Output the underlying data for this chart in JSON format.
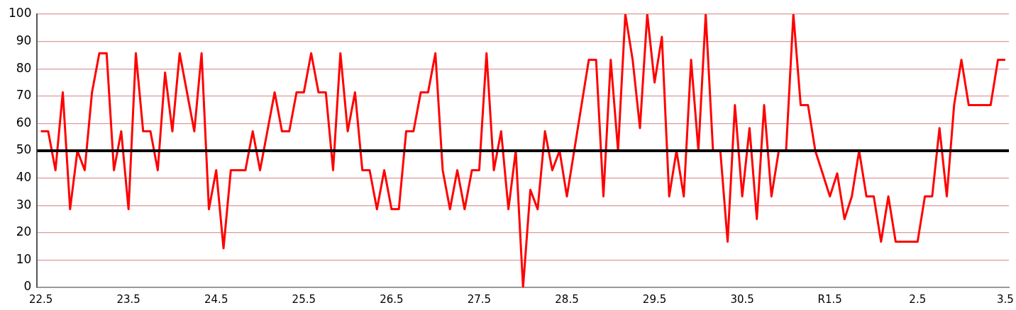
{
  "chart_data": {
    "type": "line",
    "categories": [
      "22.5",
      null,
      null,
      null,
      null,
      null,
      null,
      null,
      null,
      null,
      null,
      null,
      "23.5",
      null,
      null,
      null,
      null,
      null,
      null,
      null,
      null,
      null,
      null,
      null,
      "24.5",
      null,
      null,
      null,
      null,
      null,
      null,
      null,
      null,
      null,
      null,
      null,
      "25.5",
      null,
      null,
      null,
      null,
      null,
      null,
      null,
      null,
      null,
      null,
      null,
      "26.5",
      null,
      null,
      null,
      null,
      null,
      null,
      null,
      null,
      null,
      null,
      null,
      "27.5",
      null,
      null,
      null,
      null,
      null,
      null,
      null,
      null,
      null,
      null,
      null,
      "28.5",
      null,
      null,
      null,
      null,
      null,
      null,
      null,
      null,
      null,
      null,
      null,
      "29.5",
      null,
      null,
      null,
      null,
      null,
      null,
      null,
      null,
      null,
      null,
      null,
      "30.5",
      null,
      null,
      null,
      null,
      null,
      null,
      null,
      null,
      null,
      null,
      null,
      "R1.5",
      null,
      null,
      null,
      null,
      null,
      null,
      null,
      null,
      null,
      null,
      null,
      "2.5",
      null,
      null,
      null,
      null,
      null,
      null,
      null,
      null,
      null,
      null,
      null,
      "3.5"
    ],
    "series": [
      {
        "color": "#ff0000",
        "values": [
          57.1,
          57.1,
          42.9,
          71.4,
          28.6,
          50,
          42.9,
          71.4,
          85.7,
          85.7,
          42.9,
          57.1,
          28.6,
          85.7,
          57.1,
          57.1,
          42.9,
          78.6,
          57.1,
          85.7,
          71.4,
          57.1,
          85.7,
          28.6,
          42.9,
          14.3,
          42.9,
          42.9,
          42.9,
          57.1,
          42.9,
          57.1,
          71.4,
          57.1,
          57.1,
          71.4,
          71.4,
          85.7,
          71.4,
          71.4,
          42.9,
          85.7,
          57.1,
          71.4,
          42.9,
          42.9,
          28.6,
          42.9,
          28.6,
          28.6,
          57.1,
          57.1,
          71.4,
          71.4,
          85.7,
          42.9,
          28.6,
          42.9,
          28.6,
          42.9,
          42.9,
          85.7,
          42.9,
          57.1,
          28.6,
          50,
          0,
          35.7,
          28.6,
          57.1,
          42.9,
          50,
          33.3,
          50,
          66.7,
          83.3,
          83.3,
          33.3,
          83.3,
          50,
          100,
          83.3,
          58.3,
          100,
          75,
          91.7,
          33.3,
          50,
          33.3,
          83.3,
          50,
          100,
          50,
          50,
          16.7,
          66.7,
          33.3,
          58.3,
          25,
          66.7,
          33.3,
          50,
          50,
          100,
          66.7,
          66.7,
          50,
          41.7,
          33.3,
          41.7,
          25,
          33.3,
          50,
          33.3,
          33.3,
          16.7,
          33.3,
          16.7,
          16.7,
          16.7,
          16.7,
          33.3,
          33.3,
          58.3,
          33.3,
          66.7,
          83.3,
          66.7,
          66.7,
          66.7,
          66.7,
          83.3,
          83.3
        ]
      }
    ],
    "ylim": [
      0,
      100
    ],
    "yticks": [
      0,
      10,
      20,
      30,
      40,
      50,
      60,
      70,
      80,
      90,
      100
    ],
    "grid": "y",
    "legend": false,
    "marker": "none",
    "line_style": "solid",
    "ref_lines": [
      {
        "axis": "y",
        "value": 50,
        "color": "#000000"
      }
    ]
  }
}
